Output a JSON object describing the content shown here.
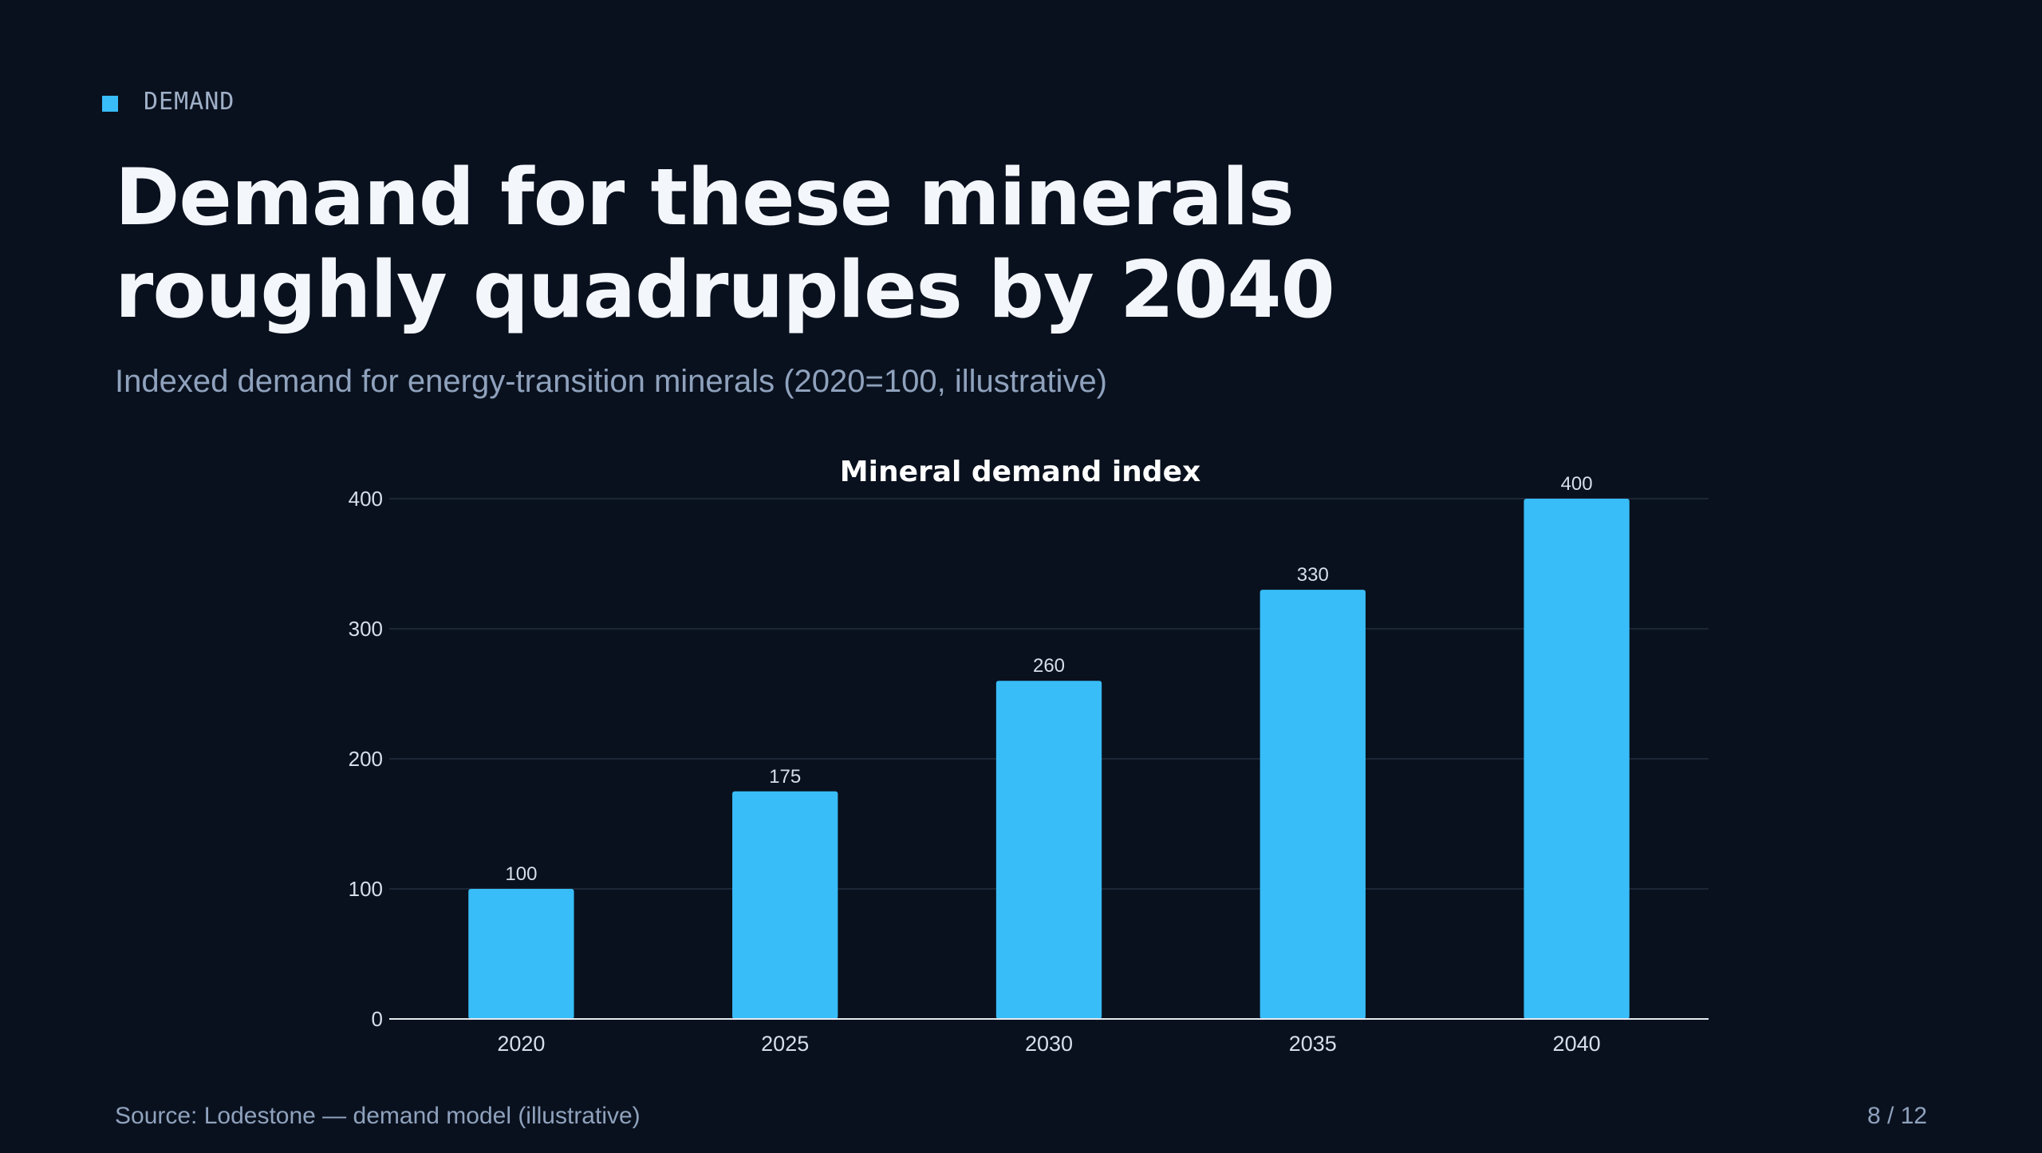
{
  "eyebrow": {
    "label": "DEMAND"
  },
  "headline": "Demand for these minerals roughly quadruples by 2040",
  "subtitle": "Indexed demand for energy-transition minerals (2020=100, illustrative)",
  "chart_data": {
    "type": "bar",
    "title": "Mineral demand index",
    "categories": [
      "2020",
      "2025",
      "2030",
      "2035",
      "2040"
    ],
    "values": [
      100,
      175,
      260,
      330,
      400
    ],
    "data_labels": [
      "100",
      "175",
      "260",
      "330",
      "400"
    ],
    "ylim": [
      0,
      400
    ],
    "yticks": [
      0,
      100,
      200,
      300,
      400
    ],
    "xlabel": "",
    "ylabel": "",
    "grid": true,
    "bar_color": "#38bdf8"
  },
  "footer": {
    "source": "Source: Lodestone — demand model (illustrative)",
    "page": "8 / 12"
  }
}
